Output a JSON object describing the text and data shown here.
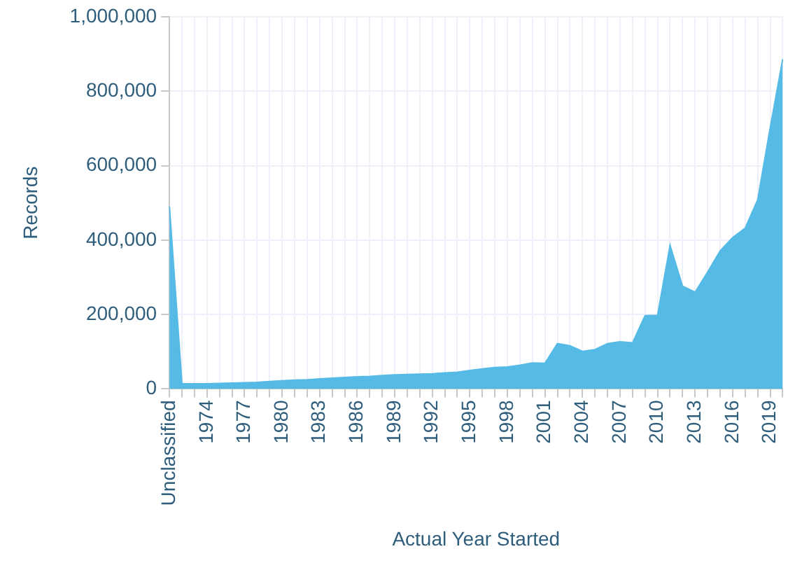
{
  "chart_data": {
    "type": "area",
    "xlabel": "Actual Year Started",
    "ylabel": "Records",
    "categories": [
      "Unclassified",
      null,
      null,
      "1974",
      null,
      null,
      "1977",
      null,
      null,
      "1980",
      null,
      null,
      "1983",
      null,
      null,
      "1986",
      null,
      null,
      "1989",
      null,
      null,
      "1992",
      null,
      null,
      "1995",
      null,
      null,
      "1998",
      null,
      null,
      "2001",
      null,
      null,
      "2004",
      null,
      null,
      "2007",
      null,
      null,
      "2010",
      null,
      null,
      "2013",
      null,
      null,
      "2016",
      null,
      null,
      "2019",
      null
    ],
    "series": [
      {
        "color": "#55bbe6",
        "values": [
          490000,
          14000,
          14000,
          14000,
          15000,
          16000,
          17000,
          18000,
          20000,
          22000,
          24000,
          25000,
          27000,
          29000,
          31000,
          33000,
          34000,
          36000,
          38000,
          39000,
          40000,
          41000,
          43000,
          45000,
          50000,
          54000,
          58000,
          59000,
          64000,
          70000,
          69000,
          122000,
          116000,
          101000,
          106000,
          122000,
          127000,
          124000,
          197000,
          198000,
          386000,
          276000,
          260000,
          314000,
          371000,
          407000,
          432000,
          508000,
          702000,
          886000
        ]
      }
    ],
    "ylim": [
      0,
      1000000
    ],
    "yticks": [
      {
        "value": 0,
        "label": "0"
      },
      {
        "value": 200000,
        "label": "200,000"
      },
      {
        "value": 400000,
        "label": "400,000"
      },
      {
        "value": 600000,
        "label": "600,000"
      },
      {
        "value": 800000,
        "label": "800,000"
      },
      {
        "value": 1000000,
        "label": "1,000,000"
      }
    ],
    "grid": true,
    "legend": false
  }
}
